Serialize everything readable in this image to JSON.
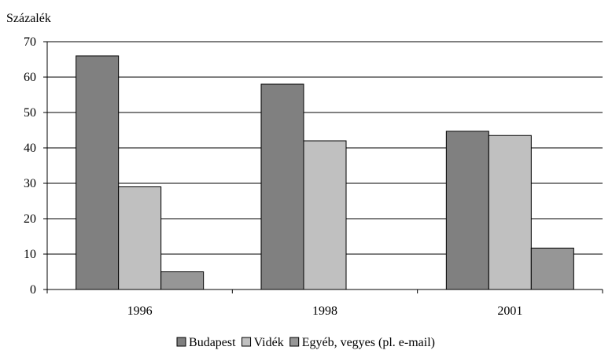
{
  "chart_data": {
    "type": "bar",
    "ylabel": "Százalék",
    "categories": [
      "1996",
      "1998",
      "2001"
    ],
    "ylim": [
      0,
      70
    ],
    "yticks": [
      0,
      10,
      20,
      30,
      40,
      50,
      60,
      70
    ],
    "grid": true,
    "legend_position": "bottom",
    "series": [
      {
        "name": "Budapest",
        "color": "#808080",
        "values": [
          66,
          58,
          44.7
        ]
      },
      {
        "name": "Vidék",
        "color": "#c0c0c0",
        "values": [
          29,
          42,
          43.5
        ]
      },
      {
        "name": "Egyéb, vegyes (pl. e-mail)",
        "color": "#969696",
        "values": [
          5,
          0,
          11.7
        ]
      }
    ]
  }
}
